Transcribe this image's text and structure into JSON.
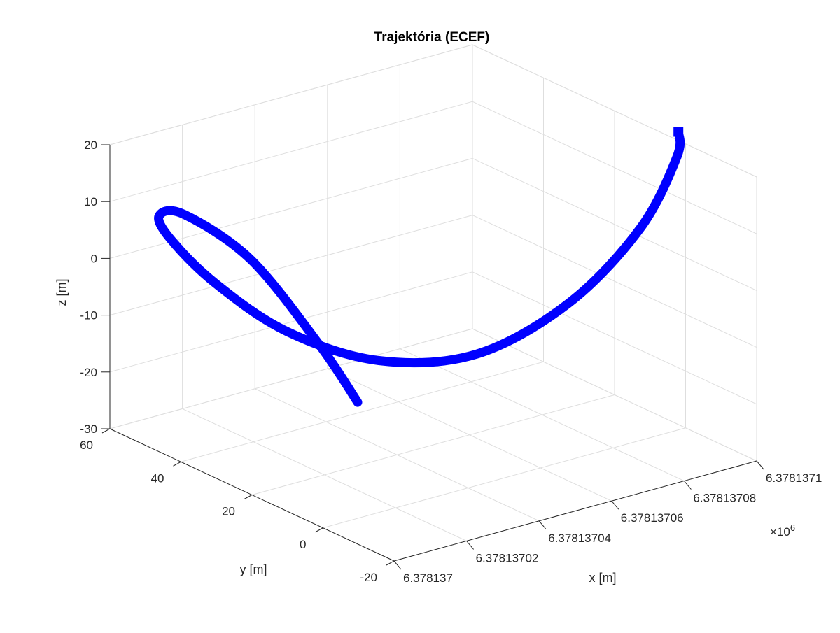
{
  "chart_data": {
    "type": "line",
    "title": "Trajektória (ECEF)",
    "xlabel": "x [m]",
    "ylabel": "y [m]",
    "zlabel": "z [m]",
    "x_exponent_label": "×10",
    "x_exponent_power": "6",
    "x_ticks": [
      "6.378137",
      "6.37813702",
      "6.37813704",
      "6.37813706",
      "6.37813708",
      "6.3781371"
    ],
    "y_ticks": [
      "-20",
      "0",
      "20",
      "40",
      "60"
    ],
    "z_ticks": [
      "-30",
      "-20",
      "-10",
      "0",
      "10",
      "20"
    ],
    "xlim": [
      6378137.0,
      6378137.1
    ],
    "ylim": [
      -20,
      60
    ],
    "zlim": [
      -30,
      20
    ],
    "grid": true,
    "series": [
      {
        "color": "#0000ff",
        "x": [
          6378137.0272,
          6378137.0221,
          6378137.0125,
          6378137.0028,
          6378137.0004,
          6378137.0045,
          6378137.0144,
          6378137.0282,
          6378137.0449,
          6378137.0625,
          6378137.079,
          6378137.0918,
          6378137.0984,
          6378137.0986
        ],
        "y": [
          18.0,
          23.6,
          33.0,
          41.8,
          46.5,
          47.6,
          44.8,
          38.8,
          30.1,
          20.6,
          11.5,
          4.4,
          0.8,
          0.6
        ],
        "z": [
          -17.9,
          -8.5,
          5.4,
          12.5,
          11.4,
          6.3,
          -2.6,
          -11.7,
          -17.2,
          -16.4,
          -7.7,
          5.3,
          17.8,
          22.2
        ]
      }
    ]
  }
}
